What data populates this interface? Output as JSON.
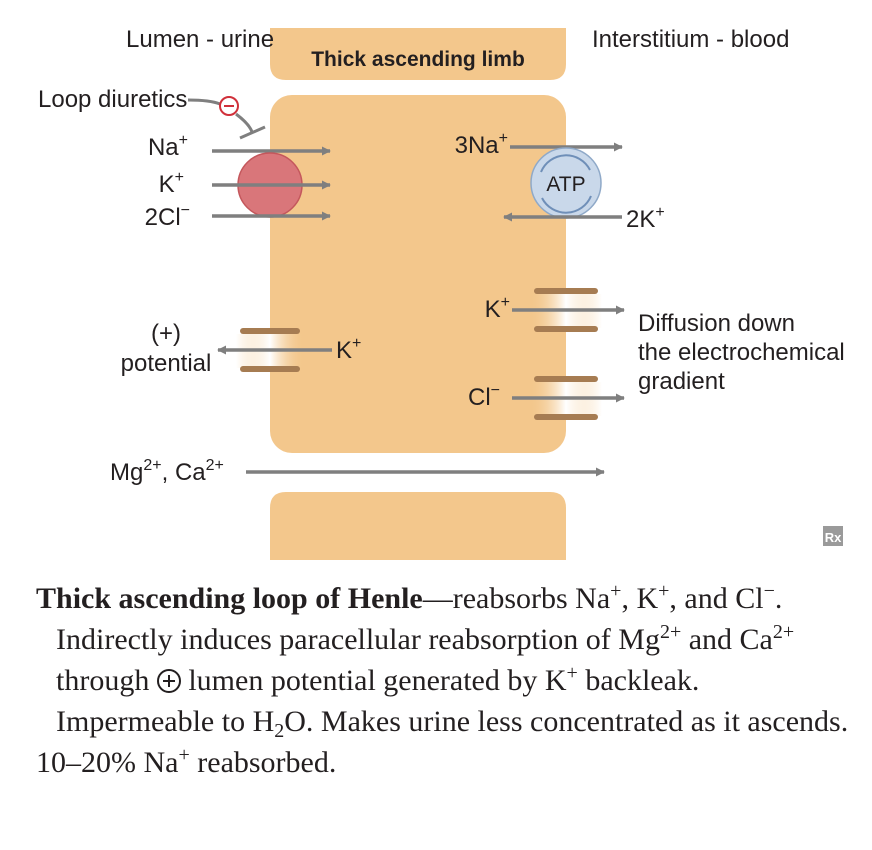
{
  "diagram": {
    "lumen_label": "Lumen - urine",
    "segment_label": "Thick ascending limb",
    "interstitium_label": "Interstitium - blood",
    "drug_label": "Loop diuretics",
    "drug_effect_symbol": "−",
    "cotransporter_ions": {
      "na": "Na",
      "k": "K",
      "cl": "2Cl",
      "plus": "+",
      "minus": "−"
    },
    "pump": {
      "label": "ATP",
      "out_ion": "3Na",
      "in_ion": "2K",
      "plus": "+"
    },
    "channels": {
      "k_basolateral": "K",
      "cl_basolateral": "Cl",
      "k_apical": "K",
      "plus": "+",
      "minus": "−",
      "diffusion_line1": "Diffusion down",
      "diffusion_line2": "the electrochemical",
      "diffusion_line3": "gradient",
      "potential_line1": "(+)",
      "potential_line2": "potential"
    },
    "paracellular": {
      "mg": "Mg",
      "ca": "Ca",
      "charge": "2+",
      "separator": ", "
    },
    "publisher_mark": "Rx",
    "colors": {
      "cell_fill": "#f3c78c",
      "cell_stroke": "#e5b06a",
      "arrow_gray": "#7f7f7f",
      "cotransporter_red": "#d9767a",
      "pump_blue": "#c9d8ea",
      "channel_brown": "#a67c52"
    }
  },
  "caption": {
    "title": "Thick ascending loop of Henle",
    "dash": "—",
    "t1": "reabsorbs Na",
    "sup_plus": "+",
    "t2": ", K",
    "t3": ", and Cl",
    "sup_minus": "−",
    "t4": ". Indirectly induces paracellular reabsorption of Mg",
    "sup_2plus": "2+",
    "t5": " and Ca",
    "t6": " through ",
    "t7": " lumen potential generated by K",
    "t8": " backleak. Impermeable to H",
    "sub_2": "2",
    "t9": "O. Makes urine less concentrated as it ascends.",
    "line2_pre": "10–20% Na",
    "line2_post": " reabsorbed."
  }
}
